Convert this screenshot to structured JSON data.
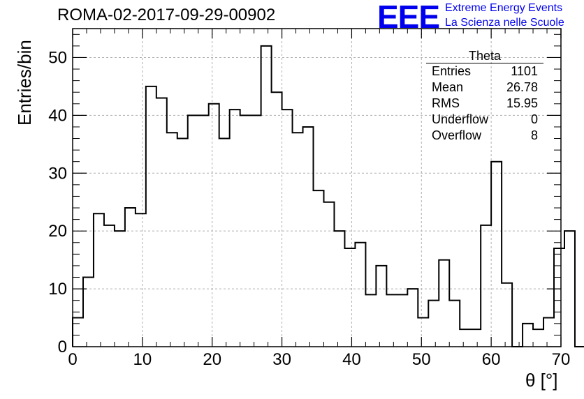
{
  "header": {
    "run_title": "ROMA-02-2017-09-29-00902",
    "logo_text": "EEE",
    "logo_line1": "Extreme Energy Events",
    "logo_line2": "La Scienza nelle Scuole"
  },
  "stats": {
    "title": "Theta",
    "rows": [
      {
        "label": "Entries",
        "value": "1101"
      },
      {
        "label": "Mean",
        "value": "26.78"
      },
      {
        "label": "RMS",
        "value": "15.95"
      },
      {
        "label": "Underflow",
        "value": "0"
      },
      {
        "label": "Overflow",
        "value": "8"
      }
    ]
  },
  "colors": {
    "logo": "#0000ee",
    "line": "#000000",
    "grid": "#b0b0b0"
  },
  "chart_data": {
    "type": "histogram",
    "title": "ROMA-02-2017-09-29-00902",
    "xlabel": "θ [°]",
    "ylabel": "Entries/bin",
    "xlim": [
      0,
      70
    ],
    "ylim": [
      0,
      55
    ],
    "x_ticks": [
      0,
      10,
      20,
      30,
      40,
      50,
      60,
      70
    ],
    "y_ticks": [
      0,
      10,
      20,
      30,
      40,
      50
    ],
    "grid": true,
    "bin_width": 1.5,
    "bin_start": 0,
    "values": [
      5,
      12,
      23,
      21,
      20,
      24,
      23,
      45,
      43,
      37,
      36,
      40,
      40,
      42,
      36,
      41,
      40,
      40,
      52,
      44,
      41,
      37,
      38,
      27,
      25,
      20,
      17,
      18,
      9,
      14,
      9,
      9,
      10,
      5,
      8,
      15,
      8,
      3,
      3,
      21,
      32,
      11,
      0,
      4,
      3,
      5,
      17,
      20,
      0
    ]
  }
}
